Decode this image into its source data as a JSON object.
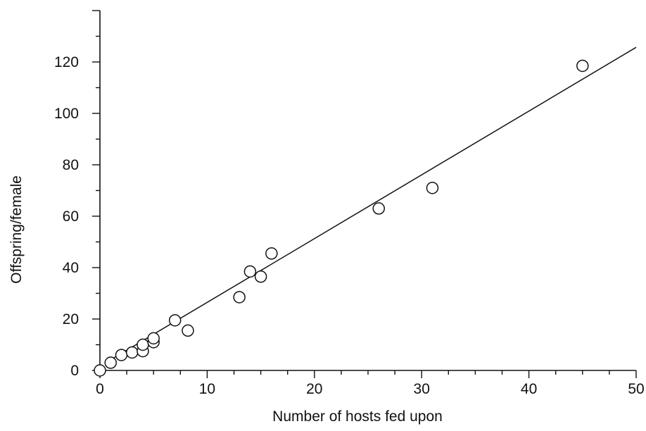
{
  "chart_data": {
    "type": "scatter",
    "xlabel": "Number of hosts fed upon",
    "ylabel": "Offspring/female",
    "xlim": [
      0,
      50
    ],
    "ylim": [
      0,
      140
    ],
    "x_ticks": [
      0,
      10,
      20,
      30,
      40,
      50
    ],
    "y_ticks": [
      0,
      20,
      40,
      60,
      80,
      100,
      120
    ],
    "grid": false,
    "legend": "none",
    "series": [
      {
        "marker": "open-circle",
        "points": [
          {
            "x": 0,
            "y": 0
          },
          {
            "x": 1,
            "y": 3
          },
          {
            "x": 2,
            "y": 6
          },
          {
            "x": 3,
            "y": 7
          },
          {
            "x": 4,
            "y": 7.5
          },
          {
            "x": 4,
            "y": 10
          },
          {
            "x": 5,
            "y": 11
          },
          {
            "x": 5,
            "y": 12.5
          },
          {
            "x": 7,
            "y": 19.5
          },
          {
            "x": 8.2,
            "y": 15.5
          },
          {
            "x": 13,
            "y": 28.5
          },
          {
            "x": 14,
            "y": 38.5
          },
          {
            "x": 15,
            "y": 36.5
          },
          {
            "x": 16,
            "y": 45.5
          },
          {
            "x": 26,
            "y": 63
          },
          {
            "x": 31,
            "y": 71
          },
          {
            "x": 45,
            "y": 118.5
          }
        ]
      }
    ],
    "fit_line": {
      "x": [
        0.5,
        50
      ],
      "y": [
        2.9,
        125.7
      ]
    }
  }
}
